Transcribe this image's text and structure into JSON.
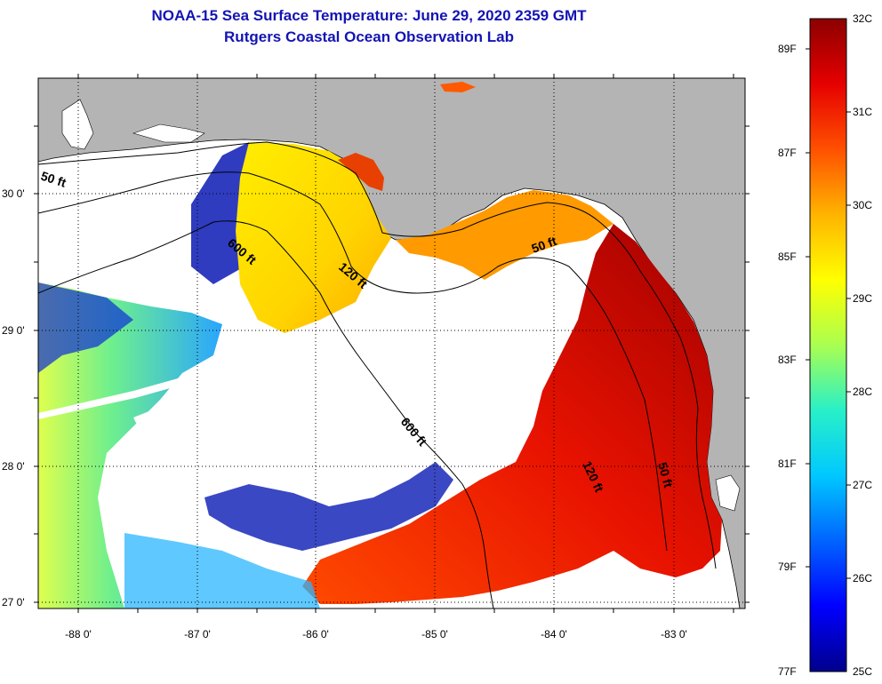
{
  "title": {
    "line1": "NOAA-15 Sea Surface Temperature:  June 29, 2020 2359 GMT",
    "line2": "Rutgers Coastal Ocean Observation Lab"
  },
  "map": {
    "longitude_ticks": [
      "-88 0'",
      "-87 0'",
      "-86 0'",
      "-85 0'",
      "-84 0'",
      "-83 0'"
    ],
    "latitude_ticks": [
      "30 0'",
      "29 0'",
      "28 0'",
      "27 0'"
    ],
    "contour_labels": {
      "c50_west": "50 ft",
      "c600_north": "600 ft",
      "c120_north": "120 ft",
      "c50_east": "50 ft",
      "c600_south": "600 ft",
      "c120_south": "120 ft",
      "c50_south": "50 ft"
    },
    "colors": {
      "land": "#b4b4b4",
      "no_data": "#ffffff",
      "frame": "#000000"
    }
  },
  "colorbar": {
    "celsius_labels": [
      "32C",
      "31C",
      "30C",
      "29C",
      "28C",
      "27C",
      "26C",
      "25C"
    ],
    "fahrenheit_labels": [
      "89F",
      "87F",
      "85F",
      "83F",
      "81F",
      "79F",
      "77F"
    ],
    "range_celsius": [
      25,
      32
    ],
    "colormap": [
      "#00008c",
      "#0000ff",
      "#0064ff",
      "#00c8ff",
      "#28f0c8",
      "#aaff50",
      "#ffff00",
      "#ffb400",
      "#ff5000",
      "#e60000",
      "#8c0000"
    ]
  }
}
